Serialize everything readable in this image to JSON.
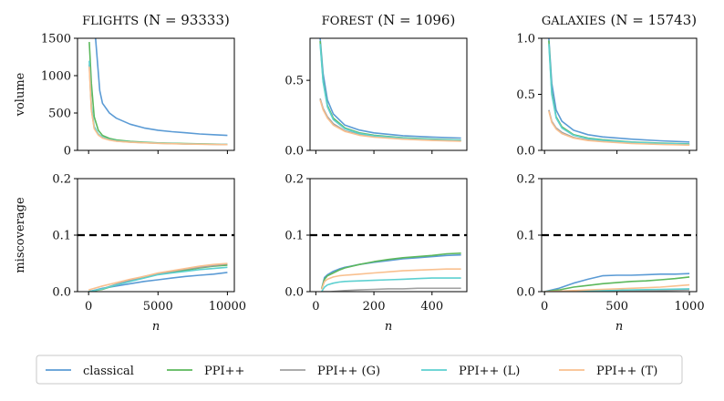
{
  "legend": [
    {
      "key": "classical",
      "label": "classical",
      "color": "#5b9bd5"
    },
    {
      "key": "ppi",
      "label": "PPI++",
      "color": "#5cb85c"
    },
    {
      "key": "ppi_g",
      "label": "PPI++ (G)",
      "color": "#a0a0a0"
    },
    {
      "key": "ppi_l",
      "label": "PPI++ (L)",
      "color": "#5dd0d0"
    },
    {
      "key": "ppi_t",
      "label": "PPI++ (T)",
      "color": "#f9c08f"
    }
  ],
  "chart_data": [
    {
      "type": "line",
      "title": "FLIGHTS",
      "title_n": "(N = 93333)",
      "row": "volume",
      "ylabel": "volume",
      "xlabel": "",
      "xlim": [
        -800,
        10500
      ],
      "ylim": [
        0,
        1500
      ],
      "yticks": [
        0,
        500,
        1000,
        1500
      ],
      "ytick_labels": [
        "0",
        "500",
        "1000",
        "1500"
      ],
      "xticks": [
        0,
        5000,
        10000
      ],
      "xtick_labels": [
        "",
        "",
        ""
      ],
      "series": [
        {
          "key": "classical",
          "x": [
            500,
            800,
            1000,
            1500,
            2000,
            3000,
            4000,
            5000,
            6000,
            7000,
            8000,
            9000,
            10000
          ],
          "y": [
            1500,
            800,
            630,
            500,
            430,
            350,
            300,
            270,
            250,
            235,
            220,
            210,
            200
          ]
        },
        {
          "key": "ppi",
          "x": [
            50,
            200,
            400,
            700,
            1000,
            1500,
            2000,
            3000,
            5000,
            7000,
            10000
          ],
          "y": [
            1450,
            900,
            450,
            270,
            200,
            160,
            140,
            120,
            100,
            90,
            80
          ]
        },
        {
          "key": "ppi_g",
          "x": [
            50,
            200,
            400,
            700,
            1000,
            1500,
            2000,
            3000,
            5000,
            7000,
            10000
          ],
          "y": [
            1150,
            550,
            300,
            210,
            170,
            140,
            125,
            110,
            95,
            85,
            78
          ]
        },
        {
          "key": "ppi_l",
          "x": [
            50,
            200,
            400,
            700,
            1000,
            1500,
            2000,
            3000,
            5000,
            7000,
            10000
          ],
          "y": [
            1200,
            600,
            320,
            220,
            175,
            145,
            128,
            112,
            97,
            87,
            80
          ]
        },
        {
          "key": "ppi_t",
          "x": [
            50,
            200,
            400,
            700,
            1000,
            1500,
            2000,
            3000,
            5000,
            7000,
            10000
          ],
          "y": [
            1120,
            540,
            290,
            205,
            165,
            138,
            122,
            108,
            94,
            84,
            77
          ]
        }
      ]
    },
    {
      "type": "line",
      "title": "FOREST",
      "title_n": "(N = 1096)",
      "row": "volume",
      "ylabel": "",
      "xlabel": "",
      "xlim": [
        -20,
        520
      ],
      "ylim": [
        0,
        0.8
      ],
      "yticks": [
        0,
        0.5
      ],
      "ytick_labels": [
        "0.0",
        "0.5"
      ],
      "xticks": [
        0,
        200,
        400
      ],
      "xtick_labels": [
        "",
        "",
        ""
      ],
      "series": [
        {
          "key": "classical",
          "x": [
            15,
            25,
            40,
            60,
            100,
            150,
            200,
            300,
            400,
            500
          ],
          "y": [
            0.8,
            0.55,
            0.36,
            0.26,
            0.18,
            0.145,
            0.125,
            0.105,
            0.095,
            0.088
          ]
        },
        {
          "key": "ppi",
          "x": [
            15,
            25,
            40,
            60,
            100,
            150,
            200,
            300,
            400,
            500
          ],
          "y": [
            0.78,
            0.5,
            0.32,
            0.23,
            0.16,
            0.125,
            0.108,
            0.09,
            0.08,
            0.073
          ]
        },
        {
          "key": "ppi_g",
          "x": [
            15,
            25,
            40,
            60,
            100,
            150,
            200,
            300,
            400,
            500
          ],
          "y": [
            0.37,
            0.3,
            0.24,
            0.19,
            0.14,
            0.112,
            0.097,
            0.082,
            0.073,
            0.067
          ]
        },
        {
          "key": "ppi_l",
          "x": [
            15,
            25,
            40,
            60,
            100,
            150,
            200,
            300,
            400,
            500
          ],
          "y": [
            0.76,
            0.49,
            0.31,
            0.22,
            0.155,
            0.12,
            0.104,
            0.087,
            0.078,
            0.071
          ]
        },
        {
          "key": "ppi_t",
          "x": [
            15,
            25,
            40,
            60,
            100,
            150,
            200,
            300,
            400,
            500
          ],
          "y": [
            0.36,
            0.29,
            0.23,
            0.18,
            0.135,
            0.108,
            0.094,
            0.08,
            0.071,
            0.065
          ]
        }
      ]
    },
    {
      "type": "line",
      "title": "GALAXIES",
      "title_n": "(N = 15743)",
      "row": "volume",
      "ylabel": "",
      "xlabel": "",
      "xlim": [
        -20,
        1050
      ],
      "ylim": [
        0,
        1.0
      ],
      "yticks": [
        0,
        0.5,
        1.0
      ],
      "ytick_labels": [
        "0.0",
        "0.5",
        "1.0"
      ],
      "xticks": [
        0,
        500,
        1000
      ],
      "xtick_labels": [
        "",
        "",
        ""
      ],
      "series": [
        {
          "key": "classical",
          "x": [
            30,
            50,
            80,
            120,
            200,
            300,
            400,
            600,
            800,
            1000
          ],
          "y": [
            1.0,
            0.6,
            0.36,
            0.26,
            0.18,
            0.14,
            0.12,
            0.1,
            0.085,
            0.075
          ]
        },
        {
          "key": "ppi",
          "x": [
            30,
            50,
            80,
            120,
            200,
            300,
            400,
            600,
            800,
            1000
          ],
          "y": [
            0.98,
            0.52,
            0.3,
            0.21,
            0.14,
            0.11,
            0.095,
            0.075,
            0.065,
            0.058
          ]
        },
        {
          "key": "ppi_g",
          "x": [
            30,
            50,
            80,
            120,
            200,
            300,
            400,
            600,
            800,
            1000
          ],
          "y": [
            0.36,
            0.26,
            0.2,
            0.16,
            0.115,
            0.092,
            0.08,
            0.064,
            0.055,
            0.049
          ]
        },
        {
          "key": "ppi_l",
          "x": [
            30,
            50,
            80,
            120,
            200,
            300,
            400,
            600,
            800,
            1000
          ],
          "y": [
            0.95,
            0.5,
            0.29,
            0.2,
            0.135,
            0.105,
            0.09,
            0.072,
            0.062,
            0.055
          ]
        },
        {
          "key": "ppi_t",
          "x": [
            30,
            50,
            80,
            120,
            200,
            300,
            400,
            600,
            800,
            1000
          ],
          "y": [
            0.35,
            0.25,
            0.19,
            0.15,
            0.11,
            0.088,
            0.077,
            0.062,
            0.053,
            0.047
          ]
        }
      ]
    },
    {
      "type": "line",
      "title": "",
      "title_n": "",
      "row": "miscoverage",
      "ylabel": "miscoverage",
      "xlabel": "n",
      "xlim": [
        -800,
        10500
      ],
      "ylim": [
        0,
        0.2
      ],
      "yticks": [
        0,
        0.1,
        0.2
      ],
      "ytick_labels": [
        "0.0",
        "0.1",
        "0.2"
      ],
      "xticks": [
        0,
        5000,
        10000
      ],
      "xtick_labels": [
        "0",
        "5000",
        "10000"
      ],
      "target": 0.1,
      "series": [
        {
          "key": "classical",
          "x": [
            0,
            1000,
            2000,
            3000,
            4000,
            5000,
            6000,
            7000,
            8000,
            9000,
            10000
          ],
          "y": [
            0.0,
            0.006,
            0.01,
            0.014,
            0.018,
            0.021,
            0.024,
            0.027,
            0.029,
            0.031,
            0.034
          ]
        },
        {
          "key": "ppi",
          "x": [
            0,
            1000,
            2000,
            3000,
            4000,
            5000,
            6000,
            7000,
            8000,
            9000,
            10000
          ],
          "y": [
            0.0,
            0.004,
            0.012,
            0.019,
            0.025,
            0.031,
            0.035,
            0.038,
            0.042,
            0.045,
            0.047
          ]
        },
        {
          "key": "ppi_g",
          "x": [
            0,
            1000,
            2000,
            3000,
            4000,
            5000,
            6000,
            7000,
            8000,
            9000,
            10000
          ],
          "y": [
            0.0,
            0.005,
            0.013,
            0.02,
            0.027,
            0.032,
            0.036,
            0.04,
            0.043,
            0.046,
            0.049
          ]
        },
        {
          "key": "ppi_l",
          "x": [
            0,
            1000,
            2000,
            3000,
            4000,
            5000,
            6000,
            7000,
            8000,
            9000,
            10000
          ],
          "y": [
            0.0,
            0.005,
            0.012,
            0.018,
            0.024,
            0.03,
            0.033,
            0.036,
            0.039,
            0.041,
            0.043
          ]
        },
        {
          "key": "ppi_t",
          "x": [
            0,
            1000,
            2000,
            3000,
            4000,
            5000,
            6000,
            7000,
            8000,
            9000,
            10000
          ],
          "y": [
            0.003,
            0.01,
            0.016,
            0.022,
            0.027,
            0.033,
            0.037,
            0.041,
            0.045,
            0.048,
            0.05
          ]
        }
      ]
    },
    {
      "type": "line",
      "title": "",
      "title_n": "",
      "row": "miscoverage",
      "ylabel": "",
      "xlabel": "n",
      "xlim": [
        -20,
        520
      ],
      "ylim": [
        0,
        0.2
      ],
      "yticks": [
        0,
        0.1,
        0.2
      ],
      "ytick_labels": [
        "0.0",
        "0.1",
        "0.2"
      ],
      "xticks": [
        0,
        200,
        400
      ],
      "xtick_labels": [
        "0",
        "200",
        "400"
      ],
      "target": 0.1,
      "series": [
        {
          "key": "classical",
          "x": [
            20,
            30,
            40,
            60,
            80,
            100,
            150,
            200,
            250,
            300,
            350,
            400,
            450,
            500
          ],
          "y": [
            0.005,
            0.025,
            0.03,
            0.036,
            0.04,
            0.043,
            0.048,
            0.052,
            0.055,
            0.058,
            0.06,
            0.062,
            0.064,
            0.065
          ]
        },
        {
          "key": "ppi",
          "x": [
            20,
            30,
            40,
            60,
            80,
            100,
            150,
            200,
            250,
            300,
            350,
            400,
            450,
            500
          ],
          "y": [
            0.005,
            0.022,
            0.028,
            0.033,
            0.038,
            0.042,
            0.048,
            0.053,
            0.057,
            0.06,
            0.062,
            0.064,
            0.067,
            0.068
          ]
        },
        {
          "key": "ppi_g",
          "x": [
            20,
            50,
            100,
            150,
            200,
            250,
            300,
            350,
            400,
            450,
            500
          ],
          "y": [
            0.0,
            0.0,
            0.002,
            0.003,
            0.004,
            0.005,
            0.005,
            0.006,
            0.006,
            0.006,
            0.006
          ]
        },
        {
          "key": "ppi_l",
          "x": [
            20,
            30,
            40,
            60,
            80,
            100,
            150,
            200,
            250,
            300,
            350,
            400,
            450,
            500
          ],
          "y": [
            0.0,
            0.008,
            0.012,
            0.015,
            0.017,
            0.018,
            0.019,
            0.02,
            0.021,
            0.022,
            0.023,
            0.024,
            0.024,
            0.024
          ]
        },
        {
          "key": "ppi_t",
          "x": [
            20,
            30,
            40,
            60,
            80,
            100,
            150,
            200,
            250,
            300,
            350,
            400,
            450,
            500
          ],
          "y": [
            0.004,
            0.018,
            0.022,
            0.026,
            0.028,
            0.029,
            0.031,
            0.033,
            0.035,
            0.037,
            0.038,
            0.039,
            0.04,
            0.04
          ]
        }
      ]
    },
    {
      "type": "line",
      "title": "",
      "title_n": "",
      "row": "miscoverage",
      "ylabel": "",
      "xlabel": "n",
      "xlim": [
        -20,
        1050
      ],
      "ylim": [
        0,
        0.2
      ],
      "yticks": [
        0,
        0.1,
        0.2
      ],
      "ytick_labels": [
        "0.0",
        "0.1",
        "0.2"
      ],
      "xticks": [
        0,
        500,
        1000
      ],
      "xtick_labels": [
        "0",
        "500",
        "1000"
      ],
      "target": 0.1,
      "series": [
        {
          "key": "classical",
          "x": [
            0,
            100,
            200,
            300,
            400,
            500,
            600,
            700,
            800,
            900,
            1000
          ],
          "y": [
            0.0,
            0.006,
            0.015,
            0.022,
            0.028,
            0.029,
            0.029,
            0.03,
            0.031,
            0.031,
            0.032
          ]
        },
        {
          "key": "ppi",
          "x": [
            0,
            100,
            200,
            300,
            400,
            500,
            600,
            700,
            800,
            900,
            1000
          ],
          "y": [
            0.0,
            0.003,
            0.008,
            0.011,
            0.014,
            0.016,
            0.018,
            0.019,
            0.021,
            0.023,
            0.026
          ]
        },
        {
          "key": "ppi_g",
          "x": [
            0,
            200,
            400,
            600,
            800,
            1000
          ],
          "y": [
            0.0,
            0.0,
            0.001,
            0.001,
            0.002,
            0.003
          ]
        },
        {
          "key": "ppi_l",
          "x": [
            0,
            200,
            400,
            600,
            800,
            1000
          ],
          "y": [
            0.0,
            0.001,
            0.002,
            0.003,
            0.004,
            0.005
          ]
        },
        {
          "key": "ppi_t",
          "x": [
            0,
            100,
            200,
            300,
            400,
            500,
            600,
            700,
            800,
            900,
            1000
          ],
          "y": [
            0.0,
            0.001,
            0.002,
            0.003,
            0.004,
            0.005,
            0.006,
            0.007,
            0.008,
            0.01,
            0.012
          ]
        }
      ]
    }
  ]
}
